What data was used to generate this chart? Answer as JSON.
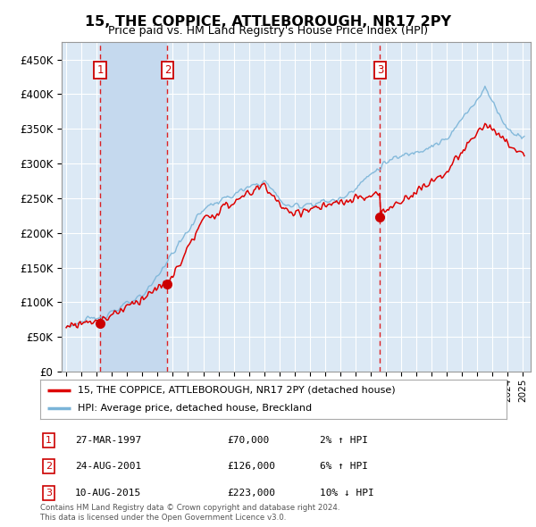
{
  "title": "15, THE COPPICE, ATTLEBOROUGH, NR17 2PY",
  "subtitle": "Price paid vs. HM Land Registry's House Price Index (HPI)",
  "legend_line1": "15, THE COPPICE, ATTLEBOROUGH, NR17 2PY (detached house)",
  "legend_line2": "HPI: Average price, detached house, Breckland",
  "footer1": "Contains HM Land Registry data © Crown copyright and database right 2024.",
  "footer2": "This data is licensed under the Open Government Licence v3.0.",
  "transactions": [
    {
      "num": 1,
      "date": "27-MAR-1997",
      "price": 70000,
      "pct": "2%",
      "dir": "↑",
      "year": 1997.23
    },
    {
      "num": 2,
      "date": "24-AUG-2001",
      "price": 126000,
      "pct": "6%",
      "dir": "↑",
      "year": 2001.65
    },
    {
      "num": 3,
      "date": "10-AUG-2015",
      "price": 223000,
      "pct": "10%",
      "dir": "↓",
      "year": 2015.61
    }
  ],
  "hpi_color": "#7ab4d8",
  "price_color": "#dd0000",
  "vline_color": "#dd0000",
  "dot_color": "#cc0000",
  "background_plot": "#dce9f5",
  "shade_color": "#c5d9ee",
  "grid_color": "#ffffff",
  "ylim": [
    0,
    475000
  ],
  "xlim_start": 1994.7,
  "xlim_end": 2025.5,
  "yticks": [
    0,
    50000,
    100000,
    150000,
    200000,
    250000,
    300000,
    350000,
    400000,
    450000
  ],
  "ytick_labels": [
    "£0",
    "£50K",
    "£100K",
    "£150K",
    "£200K",
    "£250K",
    "£300K",
    "£350K",
    "£400K",
    "£450K"
  ]
}
